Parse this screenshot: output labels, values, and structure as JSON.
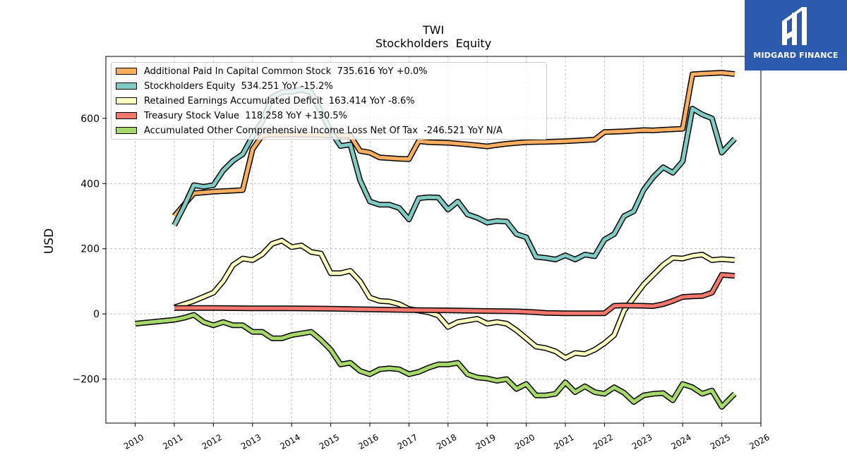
{
  "brand": {
    "name": "MIDGARD FINANCE",
    "bg_color": "#2b5aae"
  },
  "chart_data": {
    "type": "line",
    "title": "TWI",
    "subtitle": "Stockholders  Equity",
    "ylabel": "USD",
    "xlim": [
      2009.25,
      2026.0
    ],
    "ylim": [
      -335,
      790
    ],
    "x_ticks": [
      2010,
      2011,
      2012,
      2013,
      2014,
      2015,
      2016,
      2017,
      2018,
      2019,
      2020,
      2021,
      2022,
      2023,
      2024,
      2025,
      2026
    ],
    "x_tick_labels": [
      "2010",
      "2011",
      "2012",
      "2013",
      "2014",
      "2015",
      "2016",
      "2017",
      "2018",
      "2019",
      "2020",
      "2021",
      "2022",
      "2023",
      "2024",
      "2025",
      "2026"
    ],
    "y_ticks": [
      -200,
      0,
      200,
      400,
      600
    ],
    "y_tick_labels": [
      "−200",
      "0",
      "200",
      "400",
      "600"
    ],
    "grid": true,
    "legend_position": "upper-left",
    "series": [
      {
        "name": "Additional Paid In Capital Common Stock",
        "legend_label": "Additional Paid In Capital Common Stock  735.616 YoY +0.0%",
        "color": "#fdae61",
        "points": [
          [
            2011.0,
            300
          ],
          [
            2011.5,
            370
          ],
          [
            2012.0,
            375
          ],
          [
            2012.5,
            378
          ],
          [
            2012.75,
            380
          ],
          [
            2013.0,
            505
          ],
          [
            2013.25,
            548
          ],
          [
            2013.5,
            550
          ],
          [
            2014.0,
            550
          ],
          [
            2014.5,
            550
          ],
          [
            2015.0,
            548
          ],
          [
            2015.5,
            547
          ],
          [
            2015.75,
            500
          ],
          [
            2016.0,
            495
          ],
          [
            2016.25,
            480
          ],
          [
            2016.75,
            476
          ],
          [
            2017.0,
            475
          ],
          [
            2017.25,
            530
          ],
          [
            2017.5,
            527
          ],
          [
            2018.0,
            525
          ],
          [
            2018.5,
            520
          ],
          [
            2019.0,
            514
          ],
          [
            2019.25,
            518
          ],
          [
            2019.5,
            522
          ],
          [
            2020.0,
            527
          ],
          [
            2020.5,
            528
          ],
          [
            2021.0,
            530
          ],
          [
            2021.5,
            533
          ],
          [
            2021.75,
            535
          ],
          [
            2022.0,
            558
          ],
          [
            2022.5,
            560
          ],
          [
            2023.0,
            564
          ],
          [
            2023.25,
            563
          ],
          [
            2023.5,
            565
          ],
          [
            2024.0,
            568
          ],
          [
            2024.25,
            735
          ],
          [
            2024.5,
            737
          ],
          [
            2025.0,
            740
          ],
          [
            2025.33,
            736
          ]
        ]
      },
      {
        "name": "Stockholders Equity",
        "legend_label": "Stockholders Equity  534.251 YoY -15.2%",
        "color": "#80cbc4",
        "points": [
          [
            2011.0,
            272
          ],
          [
            2011.25,
            330
          ],
          [
            2011.5,
            395
          ],
          [
            2011.75,
            390
          ],
          [
            2012.0,
            395
          ],
          [
            2012.25,
            440
          ],
          [
            2012.5,
            470
          ],
          [
            2012.75,
            490
          ],
          [
            2013.0,
            545
          ],
          [
            2013.25,
            590
          ],
          [
            2013.5,
            665
          ],
          [
            2013.75,
            680
          ],
          [
            2014.0,
            682
          ],
          [
            2014.25,
            688
          ],
          [
            2014.5,
            680
          ],
          [
            2014.75,
            620
          ],
          [
            2015.0,
            560
          ],
          [
            2015.25,
            515
          ],
          [
            2015.5,
            520
          ],
          [
            2015.75,
            410
          ],
          [
            2016.0,
            345
          ],
          [
            2016.25,
            335
          ],
          [
            2016.5,
            335
          ],
          [
            2016.75,
            325
          ],
          [
            2017.0,
            290
          ],
          [
            2017.25,
            355
          ],
          [
            2017.5,
            358
          ],
          [
            2017.75,
            357
          ],
          [
            2018.0,
            320
          ],
          [
            2018.25,
            345
          ],
          [
            2018.5,
            305
          ],
          [
            2018.75,
            295
          ],
          [
            2019.0,
            280
          ],
          [
            2019.25,
            285
          ],
          [
            2019.5,
            283
          ],
          [
            2019.75,
            245
          ],
          [
            2020.0,
            235
          ],
          [
            2020.25,
            175
          ],
          [
            2020.5,
            172
          ],
          [
            2020.75,
            167
          ],
          [
            2021.0,
            180
          ],
          [
            2021.25,
            167
          ],
          [
            2021.5,
            182
          ],
          [
            2021.75,
            177
          ],
          [
            2022.0,
            228
          ],
          [
            2022.25,
            245
          ],
          [
            2022.5,
            300
          ],
          [
            2022.75,
            315
          ],
          [
            2023.0,
            380
          ],
          [
            2023.25,
            420
          ],
          [
            2023.5,
            450
          ],
          [
            2023.75,
            433
          ],
          [
            2024.0,
            468
          ],
          [
            2024.25,
            630
          ],
          [
            2024.5,
            612
          ],
          [
            2024.75,
            600
          ],
          [
            2025.0,
            495
          ],
          [
            2025.33,
            537
          ]
        ]
      },
      {
        "name": "Retained Earnings Accumulated Deficit",
        "legend_label": "Retained Earnings Accumulated Deficit  163.414 YoY -8.6%",
        "color": "#ffffbf",
        "points": [
          [
            2011.0,
            20
          ],
          [
            2011.5,
            40
          ],
          [
            2012.0,
            65
          ],
          [
            2012.25,
            100
          ],
          [
            2012.5,
            150
          ],
          [
            2012.75,
            170
          ],
          [
            2013.0,
            165
          ],
          [
            2013.25,
            183
          ],
          [
            2013.5,
            215
          ],
          [
            2013.75,
            225
          ],
          [
            2014.0,
            205
          ],
          [
            2014.25,
            210
          ],
          [
            2014.5,
            190
          ],
          [
            2014.75,
            185
          ],
          [
            2015.0,
            125
          ],
          [
            2015.25,
            125
          ],
          [
            2015.5,
            132
          ],
          [
            2015.75,
            100
          ],
          [
            2016.0,
            50
          ],
          [
            2016.25,
            40
          ],
          [
            2016.5,
            38
          ],
          [
            2016.75,
            30
          ],
          [
            2017.0,
            15
          ],
          [
            2017.5,
            5
          ],
          [
            2017.75,
            -5
          ],
          [
            2018.0,
            -40
          ],
          [
            2018.25,
            -25
          ],
          [
            2018.5,
            -20
          ],
          [
            2018.75,
            -15
          ],
          [
            2019.0,
            -30
          ],
          [
            2019.25,
            -25
          ],
          [
            2019.5,
            -30
          ],
          [
            2019.75,
            -50
          ],
          [
            2020.0,
            -75
          ],
          [
            2020.25,
            -100
          ],
          [
            2020.5,
            -105
          ],
          [
            2020.75,
            -115
          ],
          [
            2021.0,
            -135
          ],
          [
            2021.25,
            -120
          ],
          [
            2021.5,
            -123
          ],
          [
            2021.75,
            -110
          ],
          [
            2022.0,
            -90
          ],
          [
            2022.25,
            -65
          ],
          [
            2022.5,
            10
          ],
          [
            2022.75,
            50
          ],
          [
            2023.0,
            90
          ],
          [
            2023.25,
            120
          ],
          [
            2023.5,
            150
          ],
          [
            2023.75,
            172
          ],
          [
            2024.0,
            170
          ],
          [
            2024.25,
            178
          ],
          [
            2024.5,
            182
          ],
          [
            2024.75,
            165
          ],
          [
            2025.0,
            168
          ],
          [
            2025.33,
            165
          ]
        ]
      },
      {
        "name": "Treasury Stock Value",
        "legend_label": "Treasury Stock Value  118.258 YoY +130.5%",
        "color": "#f4776d",
        "points": [
          [
            2011.0,
            18
          ],
          [
            2012.0,
            18
          ],
          [
            2013.0,
            17
          ],
          [
            2014.0,
            17
          ],
          [
            2015.0,
            16
          ],
          [
            2016.0,
            14
          ],
          [
            2017.0,
            12
          ],
          [
            2018.0,
            11
          ],
          [
            2019.0,
            9
          ],
          [
            2019.75,
            8
          ],
          [
            2020.25,
            5
          ],
          [
            2020.5,
            3
          ],
          [
            2021.0,
            2
          ],
          [
            2021.5,
            2
          ],
          [
            2022.0,
            2
          ],
          [
            2022.25,
            25
          ],
          [
            2022.5,
            26
          ],
          [
            2023.0,
            25
          ],
          [
            2023.25,
            24
          ],
          [
            2023.5,
            30
          ],
          [
            2023.75,
            40
          ],
          [
            2024.0,
            52
          ],
          [
            2024.25,
            54
          ],
          [
            2024.5,
            55
          ],
          [
            2024.75,
            65
          ],
          [
            2025.0,
            120
          ],
          [
            2025.33,
            117
          ]
        ]
      },
      {
        "name": "Accumulated Other Comprehensive Income Loss Net Of Tax",
        "legend_label": "Accumulated Other Comprehensive Income Loss Net Of Tax  -246.521 YoY N/A",
        "color": "#a6d96a",
        "points": [
          [
            2010.0,
            -30
          ],
          [
            2011.0,
            -18
          ],
          [
            2011.25,
            -12
          ],
          [
            2011.5,
            -3
          ],
          [
            2011.75,
            -25
          ],
          [
            2012.0,
            -35
          ],
          [
            2012.25,
            -25
          ],
          [
            2012.5,
            -35
          ],
          [
            2012.75,
            -35
          ],
          [
            2013.0,
            -55
          ],
          [
            2013.25,
            -55
          ],
          [
            2013.5,
            -75
          ],
          [
            2013.75,
            -75
          ],
          [
            2014.0,
            -65
          ],
          [
            2014.25,
            -60
          ],
          [
            2014.5,
            -55
          ],
          [
            2014.75,
            -80
          ],
          [
            2015.0,
            -110
          ],
          [
            2015.25,
            -155
          ],
          [
            2015.5,
            -150
          ],
          [
            2015.75,
            -175
          ],
          [
            2016.0,
            -185
          ],
          [
            2016.25,
            -170
          ],
          [
            2016.5,
            -167
          ],
          [
            2016.75,
            -170
          ],
          [
            2017.0,
            -185
          ],
          [
            2017.25,
            -178
          ],
          [
            2017.5,
            -165
          ],
          [
            2017.75,
            -155
          ],
          [
            2018.0,
            -155
          ],
          [
            2018.25,
            -150
          ],
          [
            2018.5,
            -185
          ],
          [
            2018.75,
            -195
          ],
          [
            2019.0,
            -198
          ],
          [
            2019.25,
            -205
          ],
          [
            2019.5,
            -200
          ],
          [
            2019.75,
            -230
          ],
          [
            2020.0,
            -215
          ],
          [
            2020.25,
            -250
          ],
          [
            2020.5,
            -250
          ],
          [
            2020.75,
            -245
          ],
          [
            2021.0,
            -210
          ],
          [
            2021.25,
            -240
          ],
          [
            2021.5,
            -222
          ],
          [
            2021.75,
            -240
          ],
          [
            2022.0,
            -245
          ],
          [
            2022.25,
            -225
          ],
          [
            2022.5,
            -242
          ],
          [
            2022.75,
            -270
          ],
          [
            2023.0,
            -250
          ],
          [
            2023.25,
            -245
          ],
          [
            2023.5,
            -243
          ],
          [
            2023.75,
            -265
          ],
          [
            2024.0,
            -215
          ],
          [
            2024.25,
            -225
          ],
          [
            2024.5,
            -245
          ],
          [
            2024.75,
            -235
          ],
          [
            2025.0,
            -285
          ],
          [
            2025.33,
            -245
          ]
        ]
      }
    ]
  }
}
